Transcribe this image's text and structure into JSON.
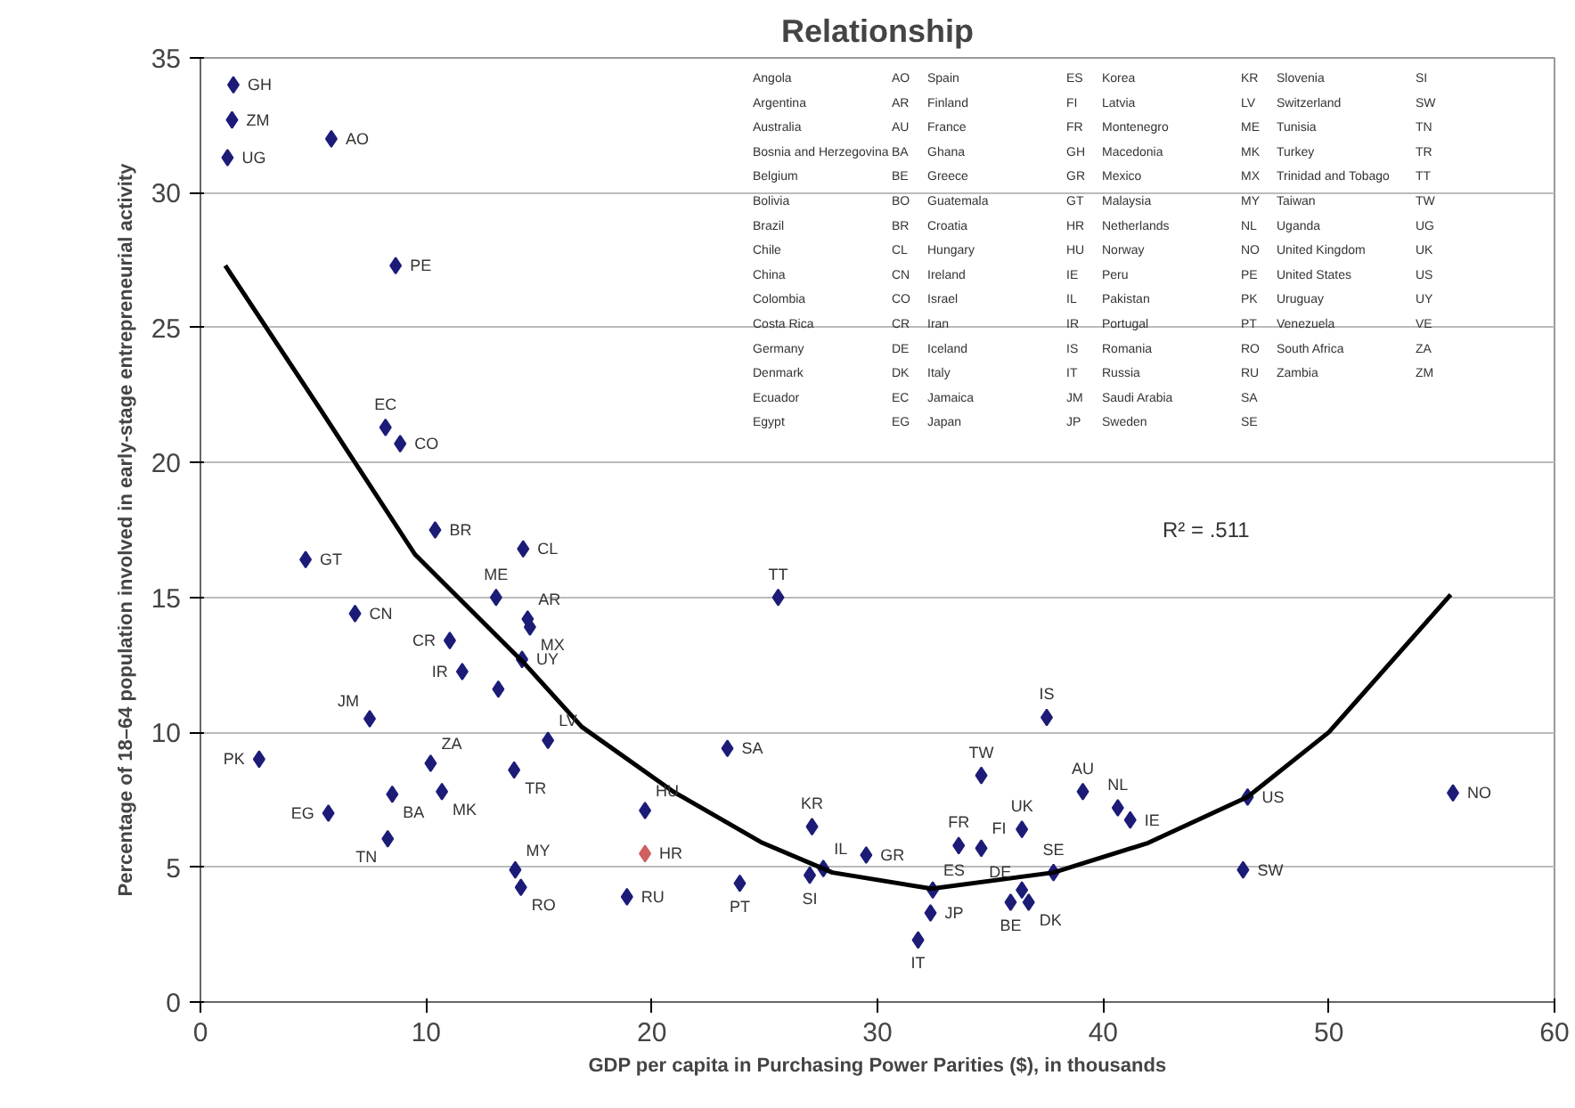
{
  "chart_data": {
    "type": "scatter",
    "title": "Relationship",
    "xlabel": "GDP per capita in Purchasing Power Parities ($), in thousands",
    "ylabel": "Percentage of 18–64 population involved in early-stage entrepreneurial activity",
    "xlim": [
      0,
      60
    ],
    "xticks": [
      0,
      10,
      20,
      30,
      40,
      50,
      60
    ],
    "ylim": [
      0,
      35
    ],
    "yticks": [
      0,
      5,
      10,
      15,
      20,
      25,
      30,
      35
    ],
    "grid": "y",
    "marker": "diamond",
    "series": [
      {
        "x": [
          1.46,
          1.4,
          1.2,
          5.8,
          8.65,
          8.2,
          8.85,
          10.4,
          14.3,
          4.66,
          13.1,
          25.6,
          6.85,
          14.5,
          14.6,
          11.05,
          14.25,
          11.6,
          13.2,
          7.5,
          15.4,
          23.35,
          2.6,
          10.2,
          13.9,
          10.7,
          8.5,
          19.7,
          5.67,
          8.3,
          13.95,
          14.2,
          19.7,
          18.9,
          23.9,
          27.1,
          27.0,
          27.6,
          29.5,
          37.5,
          34.6,
          39.1,
          40.65,
          41.2,
          46.4,
          55.5,
          36.4,
          33.6,
          34.6,
          37.8,
          46.2,
          32.45,
          36.4,
          32.35,
          35.9,
          36.7,
          31.8
        ],
        "values": [
          34.0,
          32.7,
          31.3,
          32.0,
          27.3,
          21.3,
          20.7,
          17.5,
          16.8,
          16.4,
          15.0,
          15.0,
          14.4,
          14.2,
          13.9,
          13.4,
          12.7,
          12.25,
          11.6,
          10.5,
          9.7,
          9.4,
          9.0,
          8.85,
          8.6,
          7.8,
          7.7,
          7.1,
          7.0,
          6.05,
          4.9,
          4.25,
          5.5,
          3.9,
          4.4,
          6.5,
          4.7,
          4.95,
          5.45,
          10.55,
          8.4,
          7.8,
          7.2,
          6.75,
          7.6,
          7.75,
          6.4,
          5.8,
          5.7,
          4.8,
          4.9,
          4.15,
          4.15,
          3.3,
          3.7,
          3.7,
          2.3
        ],
        "value_labels": [
          "GH",
          "ZM",
          "UG",
          "AO",
          "PE",
          "EC",
          "CO",
          "BR",
          "CL",
          "GT",
          "ME",
          "TT",
          "CN",
          "AR",
          "MX",
          "CR",
          "UY",
          "IR",
          null,
          "JM",
          "LV",
          "SA",
          "PK",
          "ZA",
          "TR",
          "MK",
          "BA",
          "HU",
          "EG",
          "TN",
          "MY",
          "RO",
          "HR",
          "RU",
          "PT",
          "KR",
          "SI",
          "IL",
          "GR",
          "IS",
          "TW",
          "AU",
          "NL",
          "IE",
          "US",
          "NO",
          "UK",
          "FR",
          "FI",
          "SE",
          "SW",
          "ES",
          "DE",
          "JP",
          "BE",
          "DK",
          "IT"
        ],
        "colors": [
          "#1c1c78",
          "#1c1c78",
          "#1c1c78",
          "#1c1c78",
          "#1c1c78",
          "#1c1c78",
          "#1c1c78",
          "#1c1c78",
          "#1c1c78",
          "#1c1c78",
          "#1c1c78",
          "#1c1c78",
          "#1c1c78",
          "#1c1c78",
          "#1c1c78",
          "#1c1c78",
          "#1c1c78",
          "#1c1c78",
          "#1c1c78",
          "#1c1c78",
          "#1c1c78",
          "#1c1c78",
          "#1c1c78",
          "#1c1c78",
          "#1c1c78",
          "#1c1c78",
          "#1c1c78",
          "#1c1c78",
          "#1c1c78",
          "#1c1c78",
          "#1c1c78",
          "#1c1c78",
          "#d06060",
          "#1c1c78",
          "#1c1c78",
          "#1c1c78",
          "#1c1c78",
          "#1c1c78",
          "#1c1c78",
          "#1c1c78",
          "#1c1c78",
          "#1c1c78",
          "#1c1c78",
          "#1c1c78",
          "#1c1c78",
          "#1c1c78",
          "#1c1c78",
          "#1c1c78",
          "#1c1c78",
          "#1c1c78",
          "#1c1c78",
          "#1c1c78",
          "#1c1c78",
          "#1c1c78",
          "#1c1c78",
          "#1c1c78",
          "#1c1c78"
        ]
      },
      {
        "type": "line",
        "color": "#000000",
        "marker": "none",
        "x": [
          1.1,
          5.25,
          9.5,
          14.3,
          16.9,
          20.95,
          24.9,
          28,
          32.4,
          37.8,
          42,
          46.4,
          50,
          55.4
        ],
        "values": [
          27.3,
          22.05,
          16.6,
          12.6,
          10.2,
          7.8,
          5.9,
          4.8,
          4.2,
          4.8,
          5.9,
          7.6,
          10,
          15.1
        ]
      }
    ],
    "annotations": [
      "R² = .511",
      "Angola",
      "AO",
      "Argentina",
      "AR",
      "Australia",
      "AU",
      "Bosnia and Herzegovina",
      "BA",
      "Belgium",
      "BE",
      "Bolivia",
      "BO",
      "Brazil",
      "BR",
      "Chile",
      "CL",
      "China",
      "CN",
      "Colombia",
      "CO",
      "Costa Rica",
      "CR",
      "Germany",
      "DE",
      "Denmark",
      "DK",
      "Ecuador",
      "EC",
      "Egypt",
      "EG",
      "Spain",
      "ES",
      "Finland",
      "FI",
      "France",
      "FR",
      "Ghana",
      "GH",
      "Greece",
      "GR",
      "Guatemala",
      "GT",
      "Croatia",
      "HR",
      "Hungary",
      "HU",
      "Ireland",
      "IE",
      "Israel",
      "IL",
      "Iran",
      "IR",
      "Iceland",
      "IS",
      "Italy",
      "IT",
      "Jamaica",
      "JM",
      "Japan",
      "JP",
      "Korea",
      "KR",
      "Latvia",
      "LV",
      "Montenegro",
      "ME",
      "Macedonia",
      "MK",
      "Mexico",
      "MX",
      "Malaysia",
      "MY",
      "Netherlands",
      "NL",
      "Norway",
      "NO",
      "Peru",
      "PE",
      "Pakistan",
      "PK",
      "Portugal",
      "PT",
      "Romania",
      "RO",
      "Russia",
      "RU",
      "Saudi Arabia",
      "SA",
      "Sweden",
      "SE",
      "Slovenia",
      "SI",
      "Switzerland",
      "SW",
      "Tunisia",
      "TN",
      "Turkey",
      "TR",
      "Trinidad and Tobago",
      "TT",
      "Taiwan",
      "TW",
      "Uganda",
      "UG",
      "United Kingdom",
      "UK",
      "United States",
      "US",
      "Uruguay",
      "UY",
      "Venezuela",
      "VE",
      "South Africa",
      "ZA",
      "Zambia",
      "ZM"
    ]
  }
}
